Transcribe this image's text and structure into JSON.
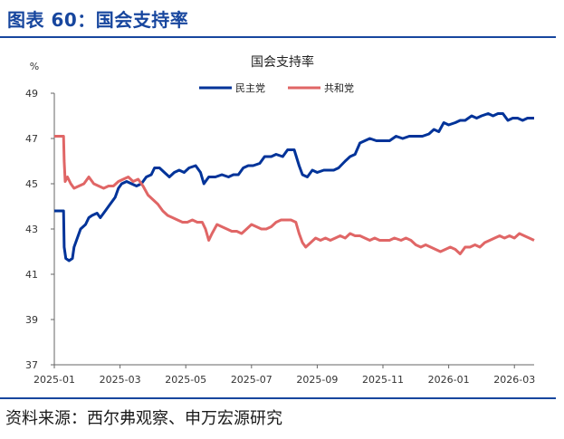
{
  "figure_title": "图表 60：国会支持率",
  "source": "资料来源：西尔弗观察、申万宏源研究",
  "chart_data": {
    "type": "line",
    "title": "国会支持率",
    "ylabel": "%",
    "ylim": [
      37,
      49
    ],
    "yticks": [
      "37",
      "39",
      "41",
      "43",
      "45",
      "47",
      "49"
    ],
    "xticks": [
      "2025-01",
      "2025-03",
      "2025-05",
      "2025-07",
      "2025-09",
      "2025-11",
      "2026-01",
      "2026-03"
    ],
    "x_range": [
      0,
      14.6
    ],
    "grid": false,
    "legend": "top-center",
    "series": [
      {
        "name": "民主党",
        "color": "#003399",
        "points": [
          [
            0,
            43.8
          ],
          [
            0.28,
            43.8
          ],
          [
            0.3,
            42.2
          ],
          [
            0.35,
            41.7
          ],
          [
            0.45,
            41.6
          ],
          [
            0.55,
            41.7
          ],
          [
            0.6,
            42.2
          ],
          [
            0.7,
            42.6
          ],
          [
            0.8,
            43.0
          ],
          [
            0.95,
            43.2
          ],
          [
            1.05,
            43.5
          ],
          [
            1.15,
            43.6
          ],
          [
            1.3,
            43.7
          ],
          [
            1.4,
            43.5
          ],
          [
            1.55,
            43.8
          ],
          [
            1.7,
            44.1
          ],
          [
            1.85,
            44.4
          ],
          [
            1.95,
            44.8
          ],
          [
            2.05,
            45.0
          ],
          [
            2.2,
            45.1
          ],
          [
            2.35,
            45.0
          ],
          [
            2.5,
            44.9
          ],
          [
            2.65,
            45.0
          ],
          [
            2.8,
            45.3
          ],
          [
            2.95,
            45.4
          ],
          [
            3.05,
            45.7
          ],
          [
            3.2,
            45.7
          ],
          [
            3.35,
            45.5
          ],
          [
            3.5,
            45.3
          ],
          [
            3.65,
            45.5
          ],
          [
            3.8,
            45.6
          ],
          [
            3.95,
            45.5
          ],
          [
            4.1,
            45.7
          ],
          [
            4.3,
            45.8
          ],
          [
            4.45,
            45.5
          ],
          [
            4.55,
            45.0
          ],
          [
            4.7,
            45.3
          ],
          [
            4.9,
            45.3
          ],
          [
            5.1,
            45.4
          ],
          [
            5.3,
            45.3
          ],
          [
            5.45,
            45.4
          ],
          [
            5.6,
            45.4
          ],
          [
            5.75,
            45.7
          ],
          [
            5.9,
            45.8
          ],
          [
            6.05,
            45.8
          ],
          [
            6.25,
            45.9
          ],
          [
            6.4,
            46.2
          ],
          [
            6.6,
            46.2
          ],
          [
            6.75,
            46.3
          ],
          [
            6.95,
            46.2
          ],
          [
            7.1,
            46.5
          ],
          [
            7.3,
            46.5
          ],
          [
            7.45,
            45.8
          ],
          [
            7.55,
            45.4
          ],
          [
            7.7,
            45.3
          ],
          [
            7.85,
            45.6
          ],
          [
            8.0,
            45.5
          ],
          [
            8.2,
            45.6
          ],
          [
            8.35,
            45.6
          ],
          [
            8.5,
            45.6
          ],
          [
            8.65,
            45.7
          ],
          [
            8.85,
            46.0
          ],
          [
            9.0,
            46.2
          ],
          [
            9.15,
            46.3
          ],
          [
            9.3,
            46.8
          ],
          [
            9.45,
            46.9
          ],
          [
            9.6,
            47.0
          ],
          [
            9.8,
            46.9
          ],
          [
            10.0,
            46.9
          ],
          [
            10.2,
            46.9
          ],
          [
            10.4,
            47.1
          ],
          [
            10.6,
            47.0
          ],
          [
            10.8,
            47.1
          ],
          [
            11.0,
            47.1
          ],
          [
            11.2,
            47.1
          ],
          [
            11.4,
            47.2
          ],
          [
            11.55,
            47.4
          ],
          [
            11.7,
            47.3
          ],
          [
            11.85,
            47.7
          ],
          [
            12.0,
            47.6
          ],
          [
            12.2,
            47.7
          ],
          [
            12.35,
            47.8
          ],
          [
            12.5,
            47.8
          ],
          [
            12.7,
            48.0
          ],
          [
            12.85,
            47.9
          ],
          [
            13.0,
            48.0
          ],
          [
            13.2,
            48.1
          ],
          [
            13.35,
            48.0
          ],
          [
            13.5,
            48.1
          ],
          [
            13.65,
            48.1
          ],
          [
            13.8,
            47.8
          ],
          [
            13.95,
            47.9
          ],
          [
            14.1,
            47.9
          ],
          [
            14.25,
            47.8
          ],
          [
            14.4,
            47.9
          ],
          [
            14.6,
            47.9
          ]
        ]
      },
      {
        "name": "共和党",
        "color": "#e06666",
        "points": [
          [
            0,
            47.1
          ],
          [
            0.28,
            47.1
          ],
          [
            0.3,
            46.0
          ],
          [
            0.33,
            45.1
          ],
          [
            0.4,
            45.3
          ],
          [
            0.5,
            45.0
          ],
          [
            0.6,
            44.8
          ],
          [
            0.75,
            44.9
          ],
          [
            0.9,
            45.0
          ],
          [
            1.05,
            45.3
          ],
          [
            1.2,
            45.0
          ],
          [
            1.35,
            44.9
          ],
          [
            1.5,
            44.8
          ],
          [
            1.65,
            44.9
          ],
          [
            1.8,
            44.9
          ],
          [
            1.95,
            45.1
          ],
          [
            2.1,
            45.2
          ],
          [
            2.25,
            45.3
          ],
          [
            2.4,
            45.1
          ],
          [
            2.55,
            45.2
          ],
          [
            2.7,
            44.9
          ],
          [
            2.85,
            44.5
          ],
          [
            3.0,
            44.3
          ],
          [
            3.15,
            44.1
          ],
          [
            3.3,
            43.8
          ],
          [
            3.45,
            43.6
          ],
          [
            3.6,
            43.5
          ],
          [
            3.75,
            43.4
          ],
          [
            3.9,
            43.3
          ],
          [
            4.05,
            43.3
          ],
          [
            4.2,
            43.4
          ],
          [
            4.35,
            43.3
          ],
          [
            4.5,
            43.3
          ],
          [
            4.6,
            43.0
          ],
          [
            4.7,
            42.5
          ],
          [
            4.8,
            42.8
          ],
          [
            4.95,
            43.2
          ],
          [
            5.1,
            43.1
          ],
          [
            5.25,
            43.0
          ],
          [
            5.4,
            42.9
          ],
          [
            5.55,
            42.9
          ],
          [
            5.7,
            42.8
          ],
          [
            5.85,
            43.0
          ],
          [
            6.0,
            43.2
          ],
          [
            6.15,
            43.1
          ],
          [
            6.3,
            43.0
          ],
          [
            6.45,
            43.0
          ],
          [
            6.6,
            43.1
          ],
          [
            6.75,
            43.3
          ],
          [
            6.9,
            43.4
          ],
          [
            7.05,
            43.4
          ],
          [
            7.2,
            43.4
          ],
          [
            7.35,
            43.3
          ],
          [
            7.45,
            42.8
          ],
          [
            7.55,
            42.4
          ],
          [
            7.65,
            42.2
          ],
          [
            7.8,
            42.4
          ],
          [
            7.95,
            42.6
          ],
          [
            8.1,
            42.5
          ],
          [
            8.25,
            42.6
          ],
          [
            8.4,
            42.5
          ],
          [
            8.55,
            42.6
          ],
          [
            8.7,
            42.7
          ],
          [
            8.85,
            42.6
          ],
          [
            9.0,
            42.8
          ],
          [
            9.15,
            42.7
          ],
          [
            9.3,
            42.7
          ],
          [
            9.45,
            42.6
          ],
          [
            9.6,
            42.5
          ],
          [
            9.75,
            42.6
          ],
          [
            9.9,
            42.5
          ],
          [
            10.05,
            42.5
          ],
          [
            10.2,
            42.5
          ],
          [
            10.35,
            42.6
          ],
          [
            10.55,
            42.5
          ],
          [
            10.7,
            42.6
          ],
          [
            10.85,
            42.5
          ],
          [
            11.0,
            42.3
          ],
          [
            11.15,
            42.2
          ],
          [
            11.3,
            42.3
          ],
          [
            11.45,
            42.2
          ],
          [
            11.6,
            42.1
          ],
          [
            11.75,
            42.0
          ],
          [
            11.9,
            42.1
          ],
          [
            12.05,
            42.2
          ],
          [
            12.2,
            42.1
          ],
          [
            12.35,
            41.9
          ],
          [
            12.5,
            42.2
          ],
          [
            12.65,
            42.2
          ],
          [
            12.8,
            42.3
          ],
          [
            12.95,
            42.2
          ],
          [
            13.1,
            42.4
          ],
          [
            13.25,
            42.5
          ],
          [
            13.4,
            42.6
          ],
          [
            13.55,
            42.7
          ],
          [
            13.7,
            42.6
          ],
          [
            13.85,
            42.7
          ],
          [
            14.0,
            42.6
          ],
          [
            14.15,
            42.8
          ],
          [
            14.3,
            42.7
          ],
          [
            14.45,
            42.6
          ],
          [
            14.6,
            42.5
          ]
        ]
      }
    ]
  }
}
